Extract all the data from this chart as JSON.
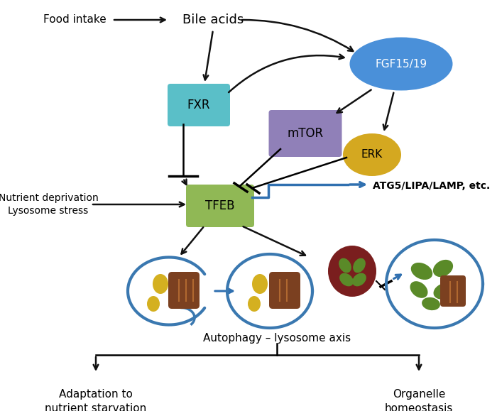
{
  "bg_color": "#ffffff",
  "fig_width": 7.0,
  "fig_height": 5.79,
  "colors": {
    "fgf_fill": "#4a90d9",
    "fxr_fill": "#5abfc8",
    "mtor_fill": "#9080b8",
    "erk_fill": "#d4a820",
    "tfeb_fill": "#90b855",
    "arrow_black": "#111111",
    "arrow_blue": "#3070b0",
    "lyso_fill": "#7a1e1e",
    "lyso_green": "#5a8a28",
    "cell_blue": "#3a78b0",
    "mito_brown": "#7b4020",
    "mito_light": "#b06830",
    "yellow_drop": "#d4b020"
  },
  "text": {
    "food_intake": "Food intake",
    "bile_acids": "Bile acids",
    "fgf": "FGF15/19",
    "fxr": "FXR",
    "mtor": "mTOR",
    "erk": "ERK",
    "tfeb": "TFEB",
    "atg5": "ATG5/LIPA/LAMP, etc.",
    "nutrient": "Nutrient deprivation\nLysosome stress",
    "autophagy": "Autophagy – lysosome axis",
    "adaptation": "Adaptation to\nnutrient starvation",
    "organelle": "Organelle\nhomeostasis"
  }
}
